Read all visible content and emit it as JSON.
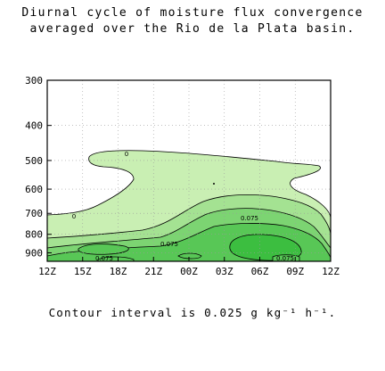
{
  "title_line1": "Diurnal cycle of moisture flux convergence",
  "title_line2": "averaged over the Rio de la Plata basin.",
  "caption": "Contour interval is 0.025 g kg⁻¹ h⁻¹.",
  "chart_data": {
    "type": "contour",
    "title": "Diurnal cycle of moisture flux convergence averaged over the Rio de la Plata basin.",
    "x_tick_labels": [
      "12Z",
      "15Z",
      "18Z",
      "21Z",
      "00Z",
      "03Z",
      "06Z",
      "09Z",
      "12Z"
    ],
    "y_tick_labels": [
      "300",
      "400",
      "500",
      "600",
      "700",
      "800",
      "900"
    ],
    "y_ticks": [
      300,
      400,
      500,
      600,
      700,
      800,
      900
    ],
    "y_range": [
      300,
      950
    ],
    "y_scale": "log-pressure",
    "x_range_hours": [
      0,
      24
    ],
    "contour_interval": 0.025,
    "contour_labels": [
      "0",
      "0",
      "0.075",
      "0.075",
      "0.075",
      "0.075"
    ],
    "fill_colors": [
      "#c9efb3",
      "#a4e292",
      "#7cd472",
      "#58c756",
      "#3cbe40"
    ],
    "grid": true
  }
}
